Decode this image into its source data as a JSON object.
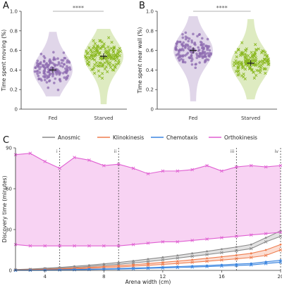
{
  "chart_data": [
    {
      "type": "scatter",
      "panel": "A",
      "ylabel": "Time spent moving (%)",
      "ylim": [
        0,
        1
      ],
      "yticks": [
        "0",
        "0.2",
        "0.4",
        "0.6",
        "0.8",
        "1.0"
      ],
      "categories": [
        "Fed",
        "Starved"
      ],
      "significance": "****",
      "groups": [
        {
          "category": "Fed",
          "mean": 0.4,
          "sem": 0.015,
          "min": 0.13,
          "max": 0.79,
          "color": "#8e6bb0",
          "marker": "circle"
        },
        {
          "category": "Starved",
          "mean": 0.54,
          "sem": 0.015,
          "min": 0.05,
          "max": 0.82,
          "color": "#8ab820",
          "marker": "cross"
        }
      ]
    },
    {
      "type": "scatter",
      "panel": "B",
      "ylabel": "Time spent near wall (%)",
      "ylim": [
        0,
        1
      ],
      "yticks": [
        "0",
        "0.2",
        "0.4",
        "0.6",
        "0.8",
        "1.0"
      ],
      "categories": [
        "Fed",
        "Starved"
      ],
      "significance": "****",
      "groups": [
        {
          "category": "Fed",
          "mean": 0.6,
          "sem": 0.015,
          "min": 0.08,
          "max": 0.95,
          "color": "#8e6bb0",
          "marker": "circle"
        },
        {
          "category": "Starved",
          "mean": 0.47,
          "sem": 0.015,
          "min": 0.1,
          "max": 0.92,
          "color": "#8ab820",
          "marker": "cross"
        }
      ]
    },
    {
      "type": "line",
      "panel": "C",
      "xlabel": "Arena width (cm)",
      "ylabel": "Discovery time (minutes)",
      "xlim": [
        2,
        20
      ],
      "ylim": [
        0,
        90
      ],
      "xticks": [
        "4",
        "8",
        "12",
        "16",
        "20"
      ],
      "yticks": [
        "0",
        "30",
        "60",
        "90"
      ],
      "x": [
        2,
        3,
        4,
        5,
        6,
        7,
        8,
        9,
        10,
        11,
        12,
        13,
        14,
        15,
        16,
        17,
        18,
        19,
        20
      ],
      "vlines": [
        {
          "x": 5,
          "label": "i"
        },
        {
          "x": 9,
          "label": "ii"
        },
        {
          "x": 17,
          "label": "iii"
        },
        {
          "x": 20,
          "label": "iv"
        }
      ],
      "series": [
        {
          "name": "Anosmic",
          "color": "#8a8a8a",
          "upper": [
            0.6,
            1,
            1.6,
            2.2,
            3,
            3.8,
            4.8,
            5.8,
            7,
            8.3,
            9.6,
            11,
            12.5,
            14,
            15.6,
            17.2,
            19,
            24,
            29
          ],
          "lower": [
            0.3,
            0.7,
            1.1,
            1.6,
            2.2,
            2.9,
            3.7,
            4.5,
            5.5,
            6.5,
            7.7,
            9,
            10.3,
            11.6,
            13,
            14.4,
            16,
            21,
            25
          ]
        },
        {
          "name": "Klinokinesis",
          "color": "#ef7d4f",
          "upper": [
            0.3,
            0.5,
            0.8,
            1.2,
            1.7,
            2.2,
            2.8,
            3.5,
            4.2,
            5,
            5.9,
            6.8,
            7.8,
            8.9,
            10,
            11.2,
            12.5,
            15,
            19
          ],
          "lower": [
            0.2,
            0.3,
            0.5,
            0.8,
            1.1,
            1.5,
            2,
            2.5,
            3.1,
            3.7,
            4.4,
            5.1,
            5.9,
            6.7,
            7.6,
            8.5,
            9.5,
            11,
            15
          ]
        },
        {
          "name": "Chemotaxis",
          "color": "#3c86e0",
          "upper": [
            0.1,
            0.2,
            0.3,
            0.5,
            0.7,
            0.9,
            1.1,
            1.4,
            1.7,
            2,
            2.4,
            2.8,
            3.2,
            3.6,
            4.1,
            4.6,
            5.1,
            6.3,
            7.5
          ],
          "lower": [
            0.05,
            0.1,
            0.2,
            0.3,
            0.4,
            0.6,
            0.8,
            1,
            1.2,
            1.5,
            1.8,
            2.1,
            2.4,
            2.8,
            3.2,
            3.6,
            4,
            5,
            6
          ]
        },
        {
          "name": "Orthokinesis",
          "color": "#e05fd2",
          "fill": "#f8d3f3",
          "upper": [
            85,
            86,
            80,
            75,
            83,
            81,
            77,
            78,
            75,
            71,
            73,
            73,
            74,
            77,
            73,
            76,
            77,
            76,
            77
          ],
          "lower": [
            19,
            18,
            18,
            18,
            18,
            18,
            18,
            18,
            19,
            20,
            21,
            21,
            22,
            23,
            24,
            25,
            26,
            27,
            28
          ]
        }
      ],
      "legend": [
        "Anosmic",
        "Klinokinesis",
        "Chemotaxis",
        "Orthokinesis"
      ],
      "legend_position": "top"
    }
  ]
}
